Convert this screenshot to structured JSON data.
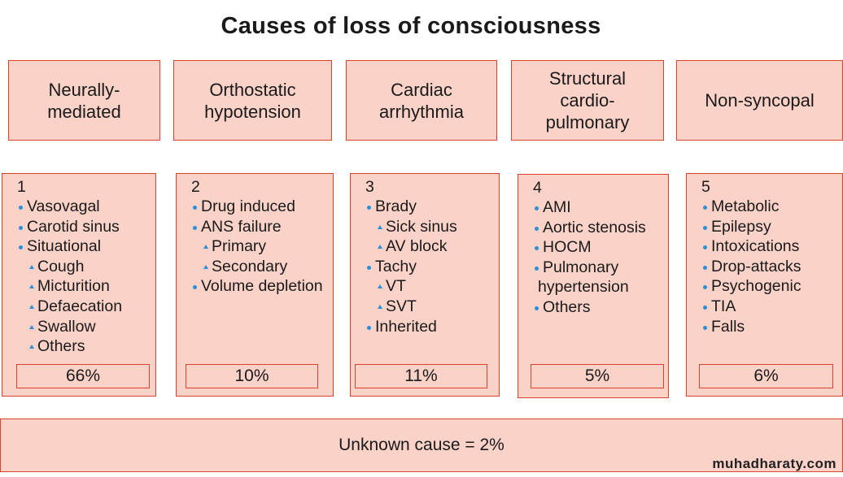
{
  "title": "Causes of loss of consciousness",
  "categories": [
    {
      "label": "Neurally-\nmediated",
      "number": "1",
      "items": [
        {
          "text": "Vasovagal",
          "level": 1
        },
        {
          "text": "Carotid sinus",
          "level": 1
        },
        {
          "text": "Situational",
          "level": 1
        },
        {
          "text": "Cough",
          "level": 2
        },
        {
          "text": "Micturition",
          "level": 2
        },
        {
          "text": "Defaecation",
          "level": 2
        },
        {
          "text": "Swallow",
          "level": 2
        },
        {
          "text": "Others",
          "level": 2
        }
      ],
      "percent": "66%"
    },
    {
      "label": "Orthostatic\nhypotension",
      "number": "2",
      "items": [
        {
          "text": "Drug induced",
          "level": 1
        },
        {
          "text": "ANS failure",
          "level": 1
        },
        {
          "text": "Primary",
          "level": 2
        },
        {
          "text": "Secondary",
          "level": 2
        },
        {
          "text": "Volume depletion",
          "level": 1
        }
      ],
      "percent": "10%"
    },
    {
      "label": "Cardiac\narrhythmia",
      "number": "3",
      "items": [
        {
          "text": "Brady",
          "level": 1
        },
        {
          "text": "Sick sinus",
          "level": 2
        },
        {
          "text": "AV block",
          "level": 2
        },
        {
          "text": "Tachy",
          "level": 1
        },
        {
          "text": "VT",
          "level": 2
        },
        {
          "text": "SVT",
          "level": 2
        },
        {
          "text": "Inherited",
          "level": 1
        }
      ],
      "percent": "11%"
    },
    {
      "label": "Structural\ncardio-\npulmonary",
      "number": "4",
      "items": [
        {
          "text": "AMI",
          "level": 1
        },
        {
          "text": "Aortic stenosis",
          "level": 1
        },
        {
          "text": "HOCM",
          "level": 1
        },
        {
          "text": "Pulmonary",
          "level": 1
        },
        {
          "text": "hypertension",
          "level": 0
        },
        {
          "text": "Others",
          "level": 1
        }
      ],
      "percent": "5%"
    },
    {
      "label": "Non-syncopal",
      "number": "5",
      "items": [
        {
          "text": "Metabolic",
          "level": 1
        },
        {
          "text": "Epilepsy",
          "level": 1
        },
        {
          "text": "Intoxications",
          "level": 1
        },
        {
          "text": "Drop-attacks",
          "level": 1
        },
        {
          "text": "Psychogenic",
          "level": 1
        },
        {
          "text": "TIA",
          "level": 1
        },
        {
          "text": "Falls",
          "level": 1
        }
      ],
      "percent": "6%"
    }
  ],
  "unknown": "Unknown cause = 2%",
  "watermark": "muhadharaty.com",
  "colors": {
    "box_fill": "#fad2c8",
    "box_border": "#d9432e",
    "bullet": "#2a8fd6"
  }
}
